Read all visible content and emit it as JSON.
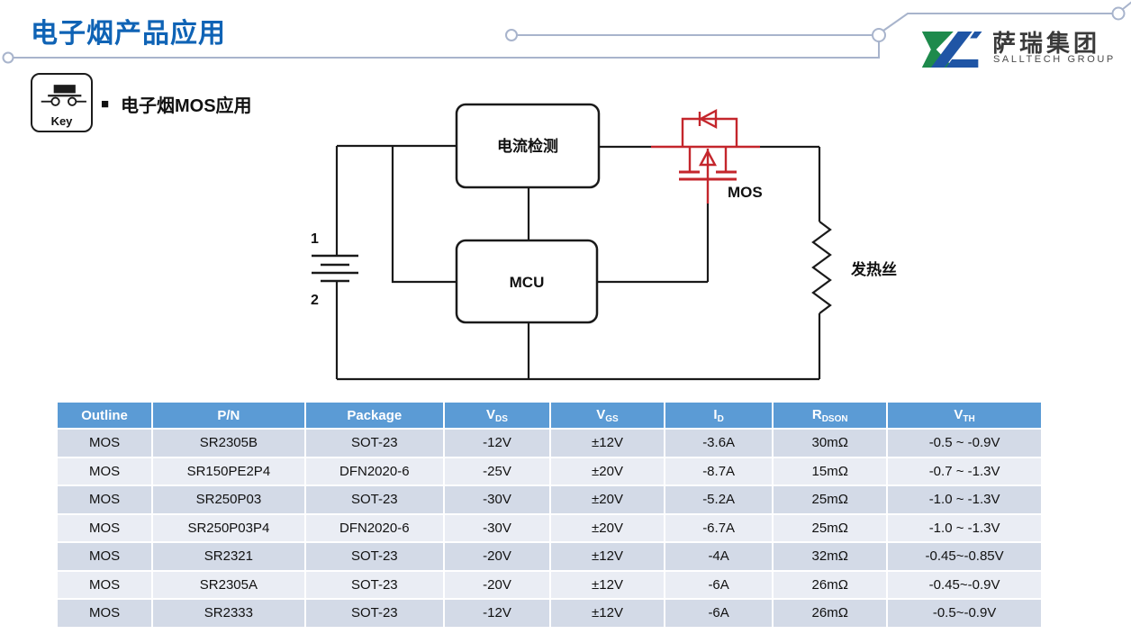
{
  "slide": {
    "title": "电子烟产品应用",
    "section_bullet": "■",
    "section_title": "电子烟MOS应用",
    "key_icon_label": "Key",
    "title_color": "#0F63B5",
    "decor_line_color": "#A8B4CC"
  },
  "logo": {
    "company_cn": "萨瑞集团",
    "company_en": "SALLTECH GROUP",
    "green": "#1E8A4C",
    "blue": "#1F55A5"
  },
  "diagram": {
    "block_current_sense": "电流检测",
    "block_mcu": "MCU",
    "mos_label": "MOS",
    "heater_label": "发热丝",
    "battery_terminal_1": "1",
    "battery_terminal_2": "2",
    "wire_color": "#1a1a1a",
    "mos_color": "#C4262C"
  },
  "table": {
    "header_bg": "#5B9BD5",
    "row_dark": "#D3DAE7",
    "row_light": "#EAEDF4",
    "columns": [
      {
        "label": "Outline",
        "sub": ""
      },
      {
        "label": "P/N",
        "sub": ""
      },
      {
        "label": "Package",
        "sub": ""
      },
      {
        "label": "V",
        "sub": "DS"
      },
      {
        "label": "V",
        "sub": "GS"
      },
      {
        "label": "I",
        "sub": "D"
      },
      {
        "label": "R",
        "sub": "DSON"
      },
      {
        "label": "V",
        "sub": "TH"
      }
    ],
    "col_widths_pct": [
      9.7,
      15.5,
      14.1,
      10.8,
      11.6,
      11.0,
      11.6,
      15.7
    ],
    "rows": [
      [
        "MOS",
        "SR2305B",
        "SOT-23",
        "-12V",
        "±12V",
        "-3.6A",
        "30mΩ",
        "-0.5 ~ -0.9V"
      ],
      [
        "MOS",
        "SR150PE2P4",
        "DFN2020-6",
        "-25V",
        "±20V",
        "-8.7A",
        "15mΩ",
        "-0.7 ~ -1.3V"
      ],
      [
        "MOS",
        "SR250P03",
        "SOT-23",
        "-30V",
        "±20V",
        "-5.2A",
        "25mΩ",
        "-1.0 ~ -1.3V"
      ],
      [
        "MOS",
        "SR250P03P4",
        "DFN2020-6",
        "-30V",
        "±20V",
        "-6.7A",
        "25mΩ",
        "-1.0 ~ -1.3V"
      ],
      [
        "MOS",
        "SR2321",
        "SOT-23",
        "-20V",
        "±12V",
        "-4A",
        "32mΩ",
        "-0.45~-0.85V"
      ],
      [
        "MOS",
        "SR2305A",
        "SOT-23",
        "-20V",
        "±12V",
        "-6A",
        "26mΩ",
        "-0.45~-0.9V"
      ],
      [
        "MOS",
        "SR2333",
        "SOT-23",
        "-12V",
        "±12V",
        "-6A",
        "26mΩ",
        "-0.5~-0.9V"
      ]
    ]
  }
}
